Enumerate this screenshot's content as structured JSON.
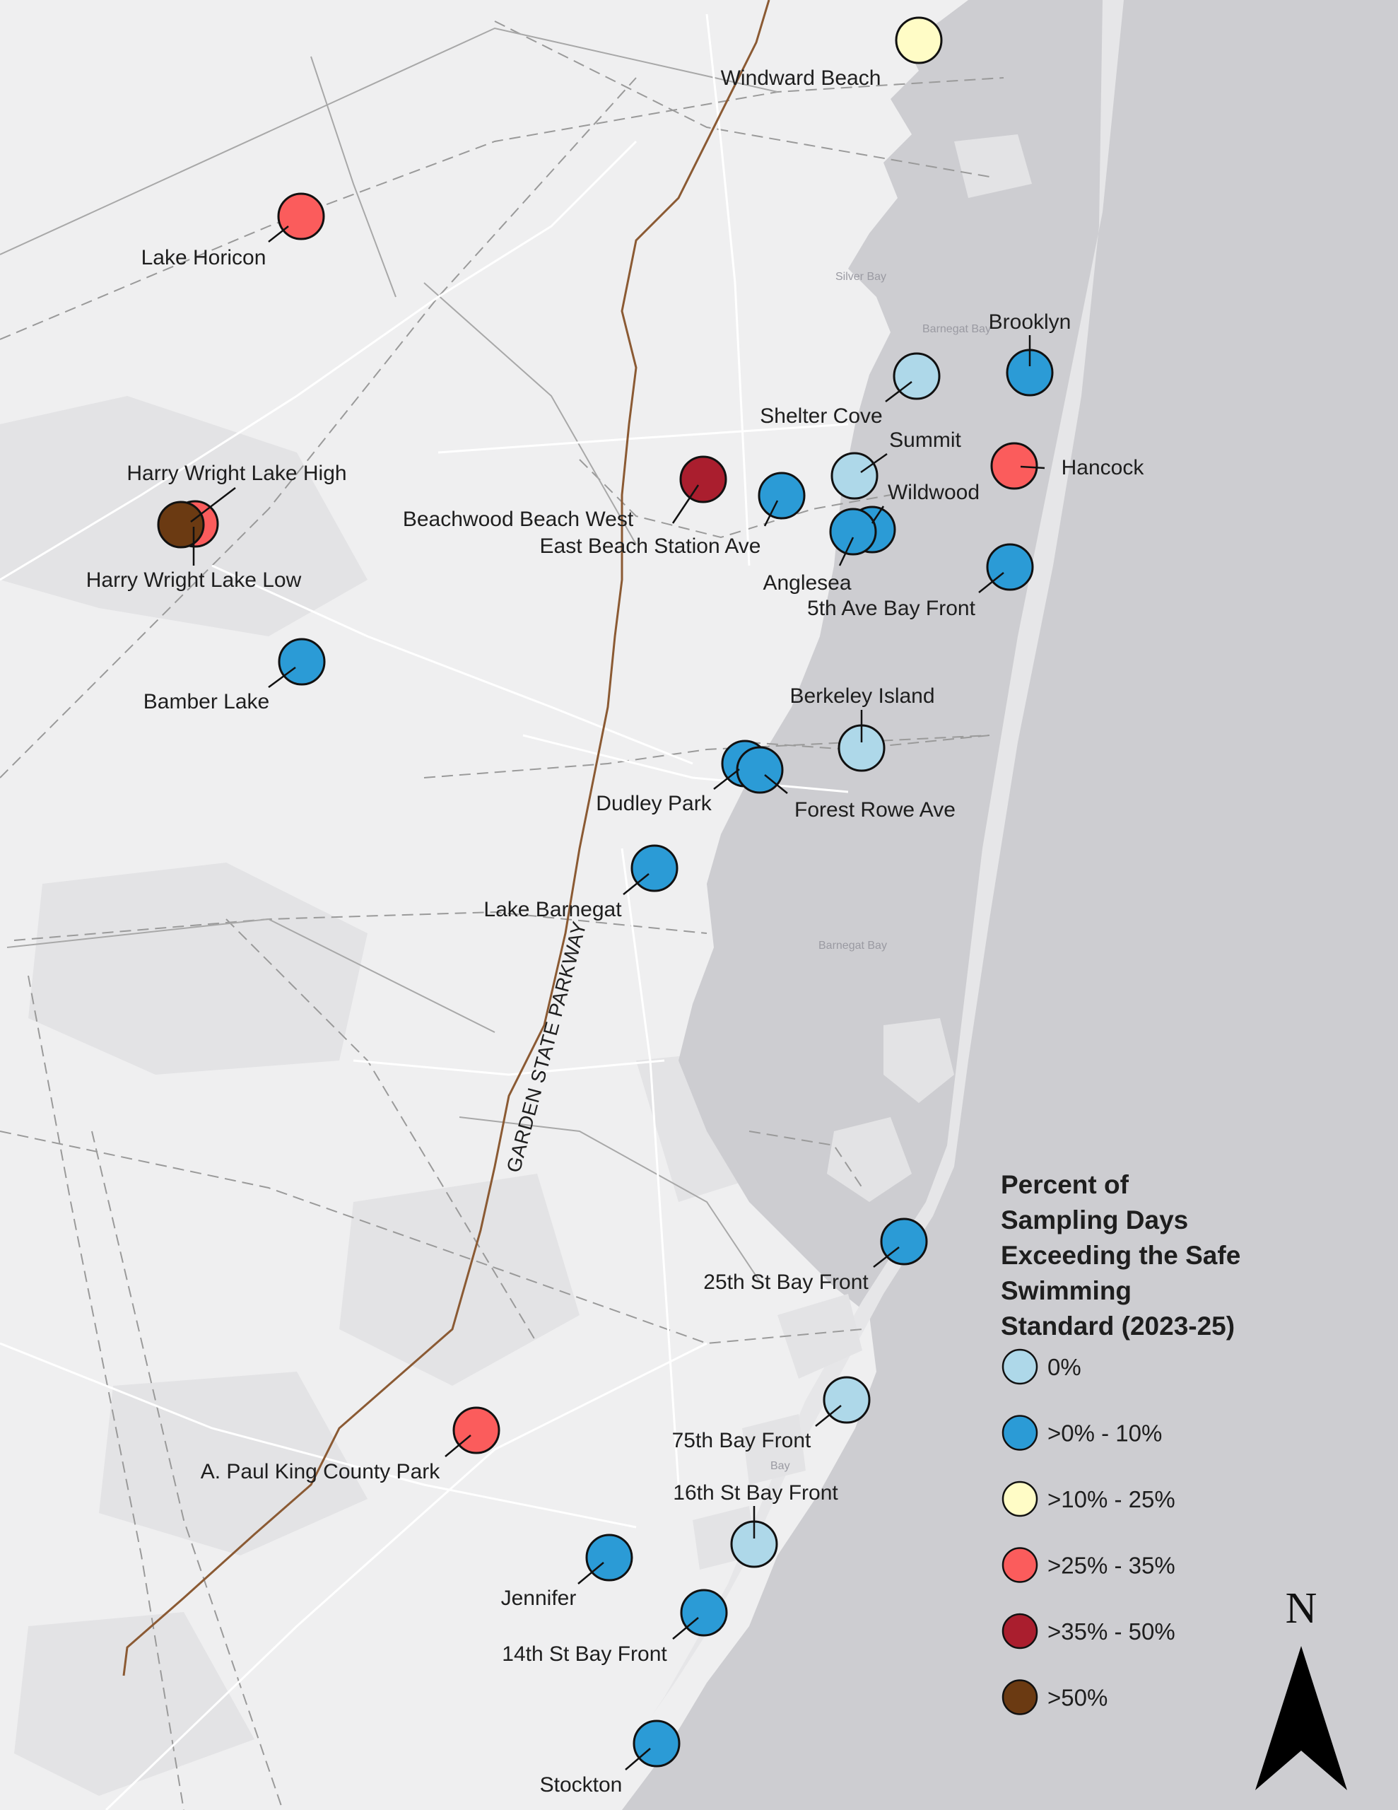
{
  "map": {
    "colors": {
      "land": "#efeff0",
      "ocean": "#cdcdd1",
      "roads": "#ffffff",
      "boundary": "#9a9a9a",
      "parkway": "#8b5a33",
      "leader": "#111111"
    }
  },
  "road_label": "GARDEN STATE PARKWAY",
  "water_labels": [
    "Silver Bay",
    "Barnegat Bay",
    "Barnegat Bay",
    "Bay"
  ],
  "legend": {
    "title": [
      "Percent of",
      "Sampling Days",
      "Exceeding the Safe",
      "Swimming",
      "Standard (2023-25)"
    ],
    "items": [
      {
        "label": "0%",
        "color": "#aed8e9"
      },
      {
        "label": ">0% - 10%",
        "color": "#2b9bd6"
      },
      {
        "label": ">10% - 25%",
        "color": "#fffcc6"
      },
      {
        "label": ">25% - 35%",
        "color": "#fb5c5c"
      },
      {
        "label": ">35% - 50%",
        "color": "#aa1e2e"
      },
      {
        "label": ">50%",
        "color": "#6b3a12"
      }
    ]
  },
  "north_arrow": {
    "label": "N",
    "icon": "north-arrow-icon"
  },
  "sites": [
    {
      "name": "Windward Beach",
      "category": ">10% - 25%"
    },
    {
      "name": "Lake Horicon",
      "category": ">25% - 35%"
    },
    {
      "name": "Brooklyn",
      "category": ">0% - 10%"
    },
    {
      "name": "Shelter Cove",
      "category": "0%"
    },
    {
      "name": "Summit",
      "category": "0%"
    },
    {
      "name": "Hancock",
      "category": ">25% - 35%"
    },
    {
      "name": "Harry Wright Lake High",
      "category": ">25% - 35%"
    },
    {
      "name": "Harry Wright Lake Low",
      "category": ">50%"
    },
    {
      "name": "Beachwood Beach West",
      "category": ">35% - 50%"
    },
    {
      "name": "East Beach Station Ave",
      "category": ">0% - 10%"
    },
    {
      "name": "Wildwood",
      "category": ">0% - 10%"
    },
    {
      "name": "Anglesea",
      "category": ">0% - 10%"
    },
    {
      "name": "5th Ave Bay Front",
      "category": ">0% - 10%"
    },
    {
      "name": "Bamber Lake",
      "category": ">0% - 10%"
    },
    {
      "name": "Berkeley Island",
      "category": "0%"
    },
    {
      "name": "Dudley Park",
      "category": ">0% - 10%"
    },
    {
      "name": "Forest Rowe Ave",
      "category": ">0% - 10%"
    },
    {
      "name": "Lake Barnegat",
      "category": ">0% - 10%"
    },
    {
      "name": "25th St Bay Front",
      "category": ">0% - 10%"
    },
    {
      "name": "75th Bay Front",
      "category": "0%"
    },
    {
      "name": "A. Paul King County Park",
      "category": ">25% - 35%"
    },
    {
      "name": "16th St Bay Front",
      "category": "0%"
    },
    {
      "name": "Jennifer",
      "category": ">0% - 10%"
    },
    {
      "name": "14th St Bay Front",
      "category": ">0% - 10%"
    },
    {
      "name": "Stockton",
      "category": ">0% - 10%"
    }
  ]
}
